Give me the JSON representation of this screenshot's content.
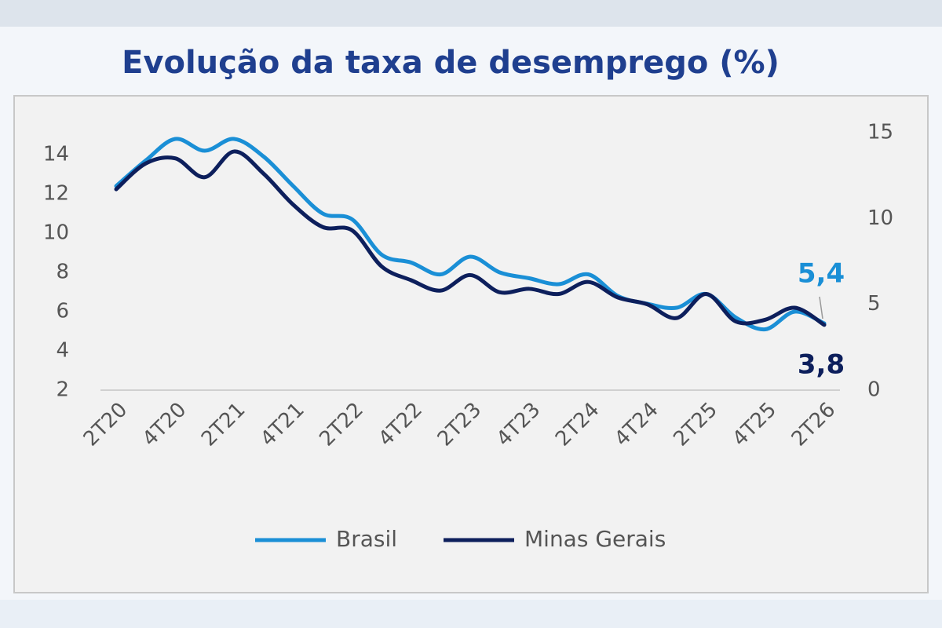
{
  "chart_data": {
    "type": "line",
    "title": "Evolução da taxa de desemprego (%)",
    "categories": [
      "2T20",
      null,
      "4T20",
      null,
      "2T21",
      null,
      "4T21",
      null,
      "2T22",
      null,
      "4T22",
      null,
      "2T23",
      null,
      "4T23",
      null,
      "2T24",
      null,
      "4T24",
      null,
      "2T25",
      null,
      "4T25",
      null,
      "2T26"
    ],
    "series": [
      {
        "name": "Brasil",
        "color": "#1a8fd6",
        "axis": "y",
        "values": [
          12.4,
          13.7,
          14.8,
          14.2,
          14.8,
          13.9,
          12.4,
          11.0,
          10.7,
          8.9,
          8.5,
          7.9,
          8.8,
          8.0,
          7.7,
          7.4,
          7.9,
          6.8,
          6.4,
          6.2,
          6.9,
          5.7,
          5.1,
          6.0,
          5.4
        ],
        "value_labels": [
          null,
          null,
          null,
          null,
          null,
          null,
          null,
          null,
          null,
          null,
          null,
          null,
          null,
          null,
          null,
          null,
          null,
          null,
          null,
          null,
          null,
          null,
          null,
          null,
          "5,4"
        ]
      },
      {
        "name": "Minas Gerais",
        "color": "#0d1f5c",
        "axis": "y2",
        "values": [
          11.7,
          13.2,
          13.5,
          12.4,
          13.9,
          12.6,
          10.8,
          9.5,
          9.3,
          7.2,
          6.4,
          5.8,
          6.7,
          5.7,
          5.9,
          5.6,
          6.3,
          5.4,
          5.0,
          4.2,
          5.6,
          4.0,
          4.1,
          4.8,
          3.8
        ],
        "value_labels": [
          null,
          null,
          null,
          null,
          null,
          null,
          null,
          null,
          null,
          null,
          null,
          null,
          null,
          null,
          null,
          null,
          null,
          null,
          null,
          null,
          null,
          null,
          null,
          null,
          "3,8"
        ]
      }
    ],
    "ylim": [
      2,
      16
    ],
    "yticks": [
      2,
      4,
      6,
      8,
      10,
      12,
      14
    ],
    "y2lim": [
      0,
      16
    ],
    "y2ticks": [
      0,
      5,
      10,
      15
    ],
    "legend": "bottom",
    "grid": false
  }
}
